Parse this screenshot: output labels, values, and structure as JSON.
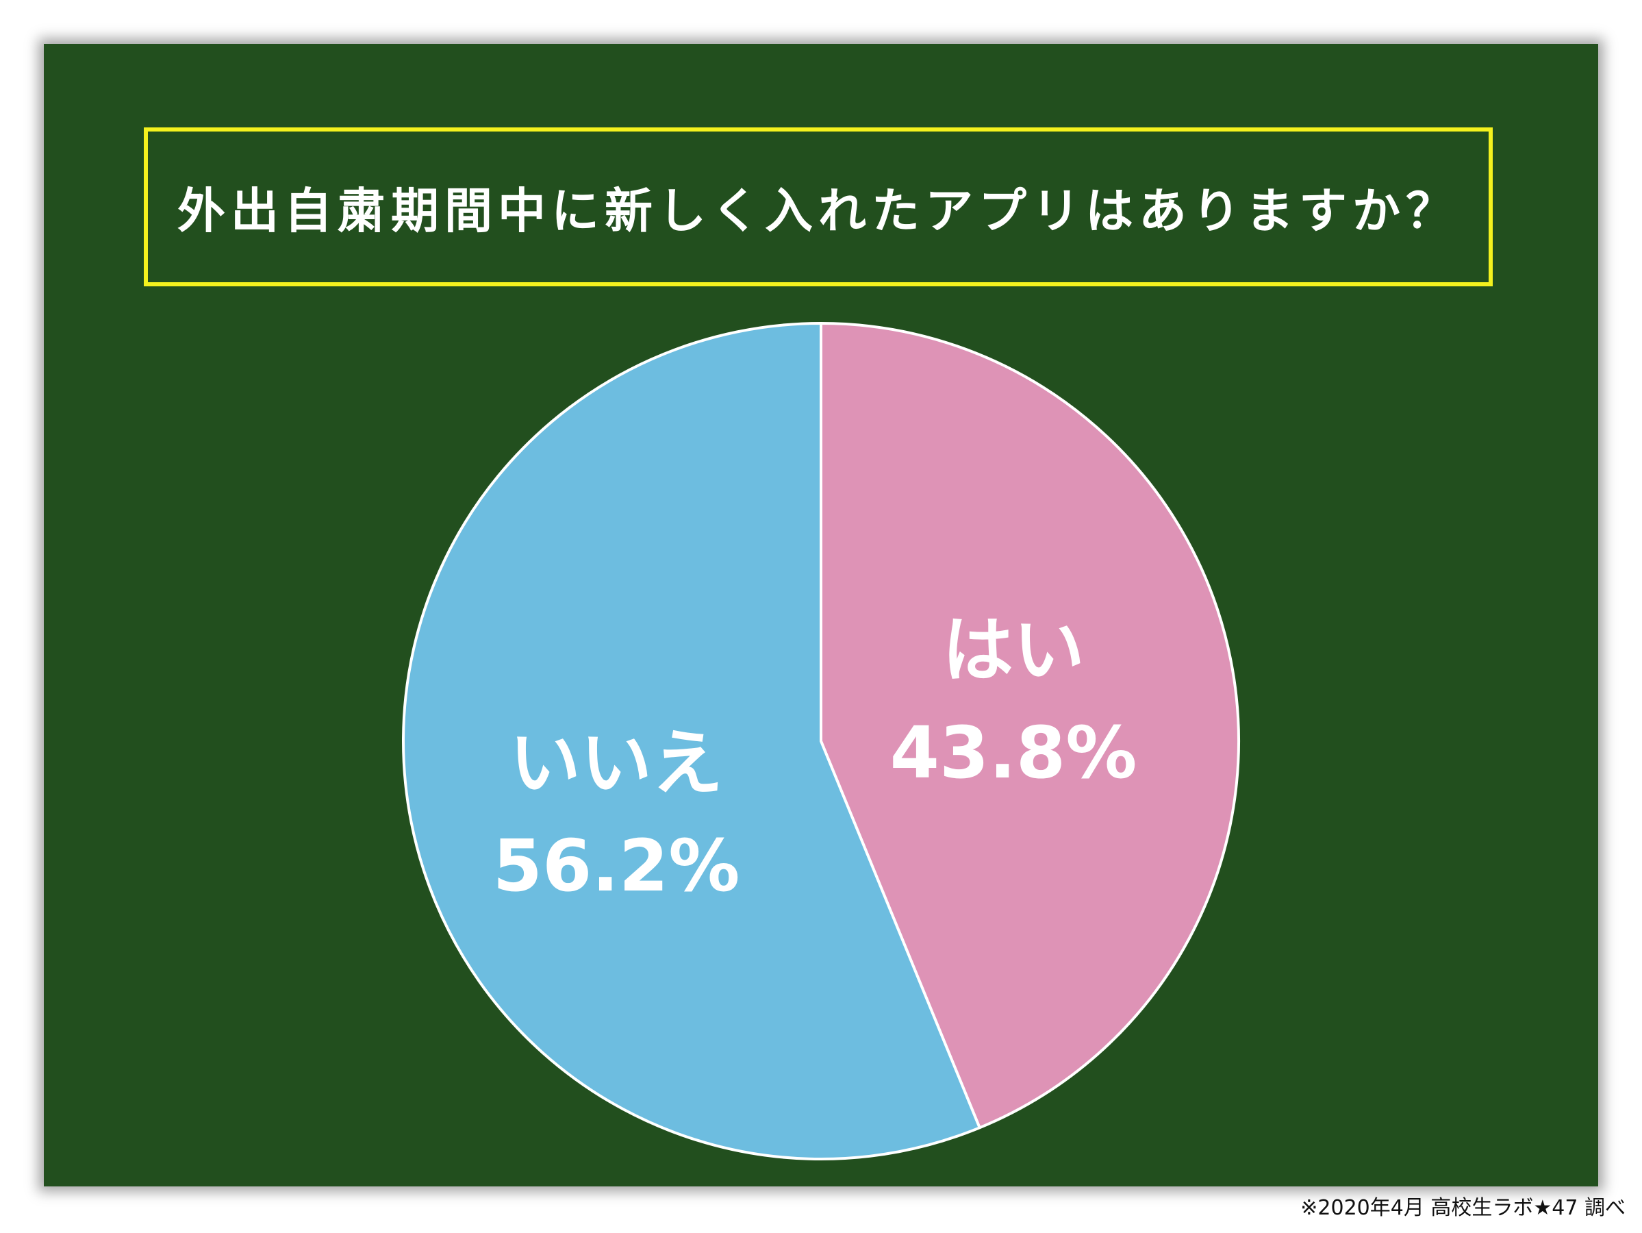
{
  "colors": {
    "board": "#224f1e",
    "title_border": "#f4f21e",
    "hai": "#de93b6",
    "iie": "#6dbde0",
    "slice_border": "#ffffff"
  },
  "chart_data": {
    "type": "pie",
    "title": "外出自粛期間中に新しく入れたアプリはありますか？",
    "slices": [
      {
        "label": "はい",
        "value": 43.8,
        "value_text": "43.8%",
        "color": "#de93b6"
      },
      {
        "label": "いいえ",
        "value": 56.2,
        "value_text": "56.2%",
        "color": "#6dbde0"
      }
    ],
    "start_angle": "12 o'clock",
    "direction": "clockwise",
    "legend": "none"
  },
  "footer": {
    "source": "※2020年4月 高校生ラボ★47 調べ"
  }
}
